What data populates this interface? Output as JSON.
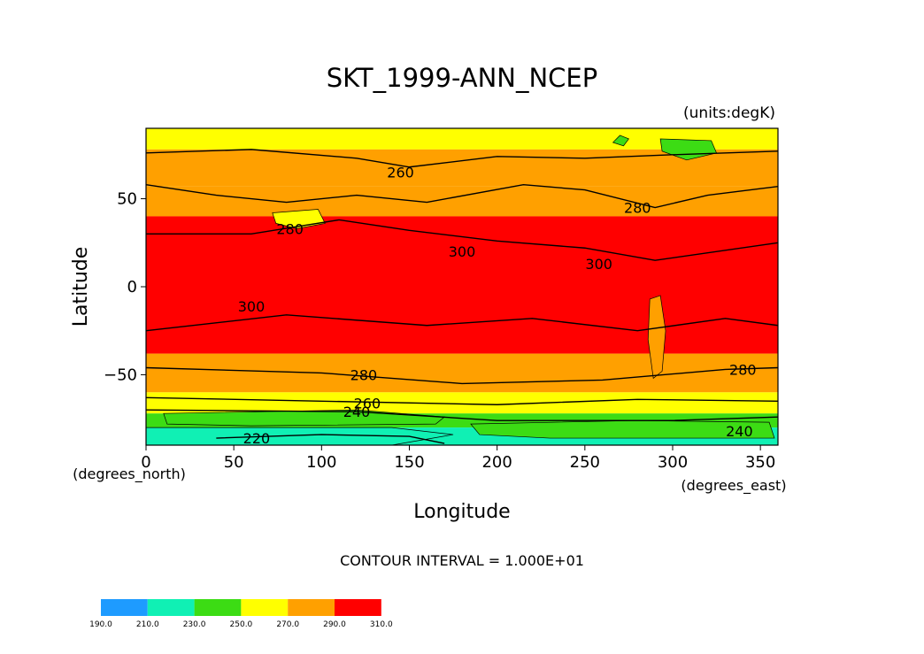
{
  "chart_data": {
    "type": "heatmap",
    "title": "SKT_1999-ANN_NCEP",
    "units_label": "(units:degK)",
    "xlabel": "Longitude",
    "ylabel": "Latitude",
    "x_unit_label": "(degrees_east)",
    "y_unit_label": "(degrees_north)",
    "x_ticks": [
      0,
      50,
      100,
      150,
      200,
      250,
      300,
      350
    ],
    "y_ticks": [
      50,
      0,
      -50
    ],
    "xlim": [
      0,
      360
    ],
    "ylim": [
      -90,
      90
    ],
    "footer": "CONTOUR INTERVAL = 1.000E+01",
    "colorbar": {
      "levels": [
        "190.0",
        "210.0",
        "230.0",
        "250.0",
        "270.0",
        "290.0",
        "310.0"
      ],
      "colors": [
        "#1e9bff",
        "#10f0b4",
        "#3cdc14",
        "#ffff00",
        "#ffa000",
        "#ff0000"
      ]
    },
    "bands": [
      {
        "lat_top": 90,
        "lat_bottom": 78,
        "value": 260
      },
      {
        "lat_top": 78,
        "lat_bottom": 57,
        "value": 280
      },
      {
        "lat_top": 57,
        "lat_bottom": 40,
        "value": 280
      },
      {
        "lat_top": 40,
        "lat_bottom": -38,
        "value": 300
      },
      {
        "lat_top": -38,
        "lat_bottom": -60,
        "value": 280
      },
      {
        "lat_top": -60,
        "lat_bottom": -72,
        "value": 260
      },
      {
        "lat_top": -72,
        "lat_bottom": -80,
        "value": 240
      },
      {
        "lat_top": -80,
        "lat_bottom": -90,
        "value": 220
      }
    ],
    "contour_labels": [
      {
        "text": "260",
        "lon": 145,
        "lat": 65
      },
      {
        "text": "280",
        "lon": 280,
        "lat": 45
      },
      {
        "text": "280",
        "lon": 82,
        "lat": 33
      },
      {
        "text": "300",
        "lon": 180,
        "lat": 20
      },
      {
        "text": "300",
        "lon": 258,
        "lat": 13
      },
      {
        "text": "300",
        "lon": 60,
        "lat": -11
      },
      {
        "text": "280",
        "lon": 124,
        "lat": -50
      },
      {
        "text": "280",
        "lon": 340,
        "lat": -47
      },
      {
        "text": "260",
        "lon": 126,
        "lat": -66
      },
      {
        "text": "240",
        "lon": 120,
        "lat": -71
      },
      {
        "text": "220",
        "lon": 63,
        "lat": -86
      },
      {
        "text": "240",
        "lon": 338,
        "lat": -82
      }
    ]
  }
}
